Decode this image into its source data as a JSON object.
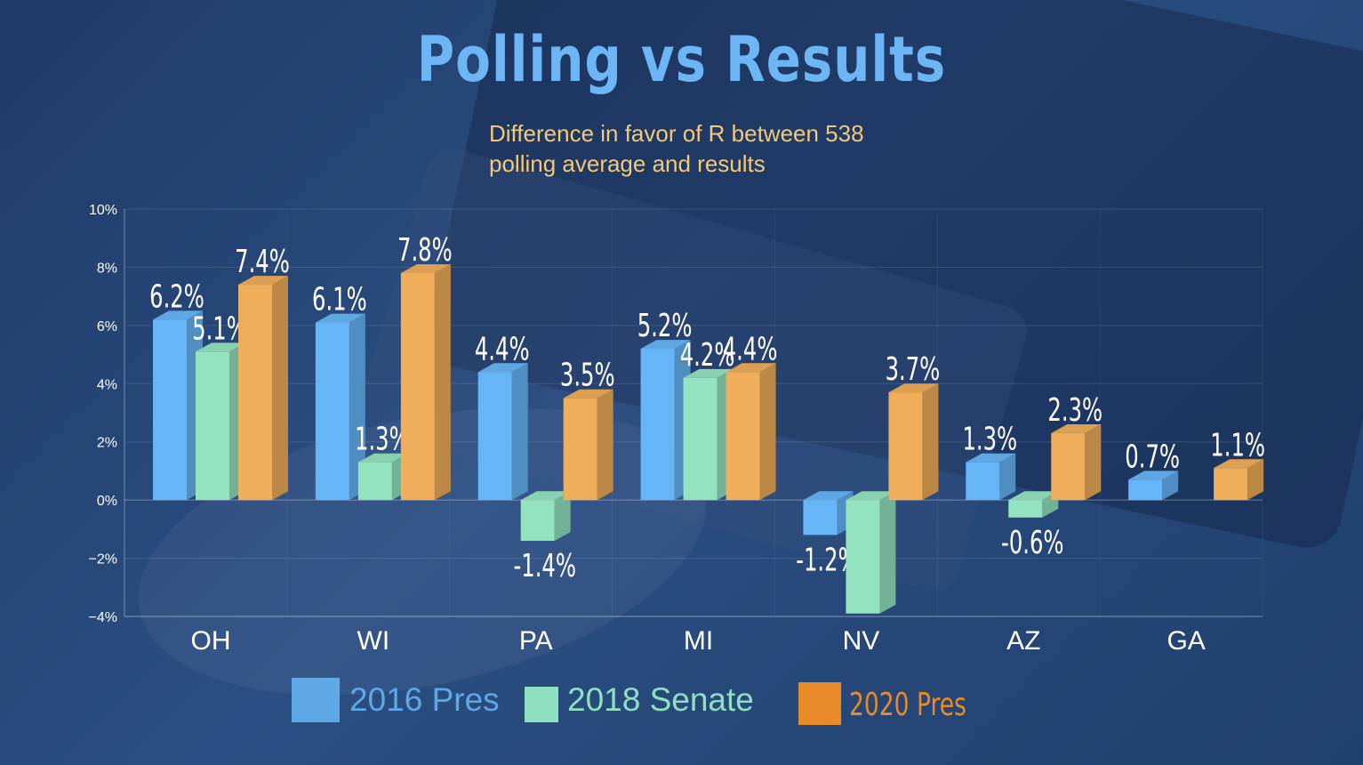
{
  "chart_data": {
    "type": "bar",
    "title": "Polling vs Results",
    "subtitle": "Difference in favor of R between 538 polling average and results",
    "categories": [
      "OH",
      "WI",
      "PA",
      "MI",
      "NV",
      "AZ",
      "GA"
    ],
    "series": [
      {
        "name": "2016 Pres",
        "color": "#66b6f7",
        "values": [
          6.2,
          6.1,
          4.4,
          5.2,
          -1.2,
          1.3,
          0.7
        ]
      },
      {
        "name": "2018 Senate",
        "color": "#94e3c0",
        "values": [
          5.1,
          1.3,
          -1.4,
          4.2,
          -3.9,
          -0.6,
          null
        ]
      },
      {
        "name": "2020 Pres",
        "color": "#f0ae5a",
        "values": [
          7.4,
          7.8,
          3.5,
          4.4,
          3.7,
          2.3,
          1.1
        ]
      }
    ],
    "data_labels": [
      [
        "6.2%",
        "6.1%",
        "4.4%",
        "5.2%",
        "-1.2%",
        "1.3%",
        "0.7%"
      ],
      [
        "5.1%",
        "1.3%",
        "-1.4%",
        "4.2%",
        "",
        "-0.6%",
        ""
      ],
      [
        "7.4%",
        "7.8%",
        "3.5%",
        "4.4%",
        "3.7%",
        "2.3%",
        "1.1%"
      ]
    ],
    "y_ticks": [
      "10%",
      "8%",
      "6%",
      "4%",
      "2%",
      "0%",
      "−2%",
      "−4%"
    ],
    "ylim": [
      -4,
      10
    ],
    "grid": true,
    "legend_position": "bottom"
  },
  "colors": {
    "title": "#6cb6f5",
    "subtitle": "#f2c879",
    "legend_2016": "#5ea8e6",
    "legend_2018": "#8fe0bf",
    "legend_2020": "#e8892a"
  }
}
